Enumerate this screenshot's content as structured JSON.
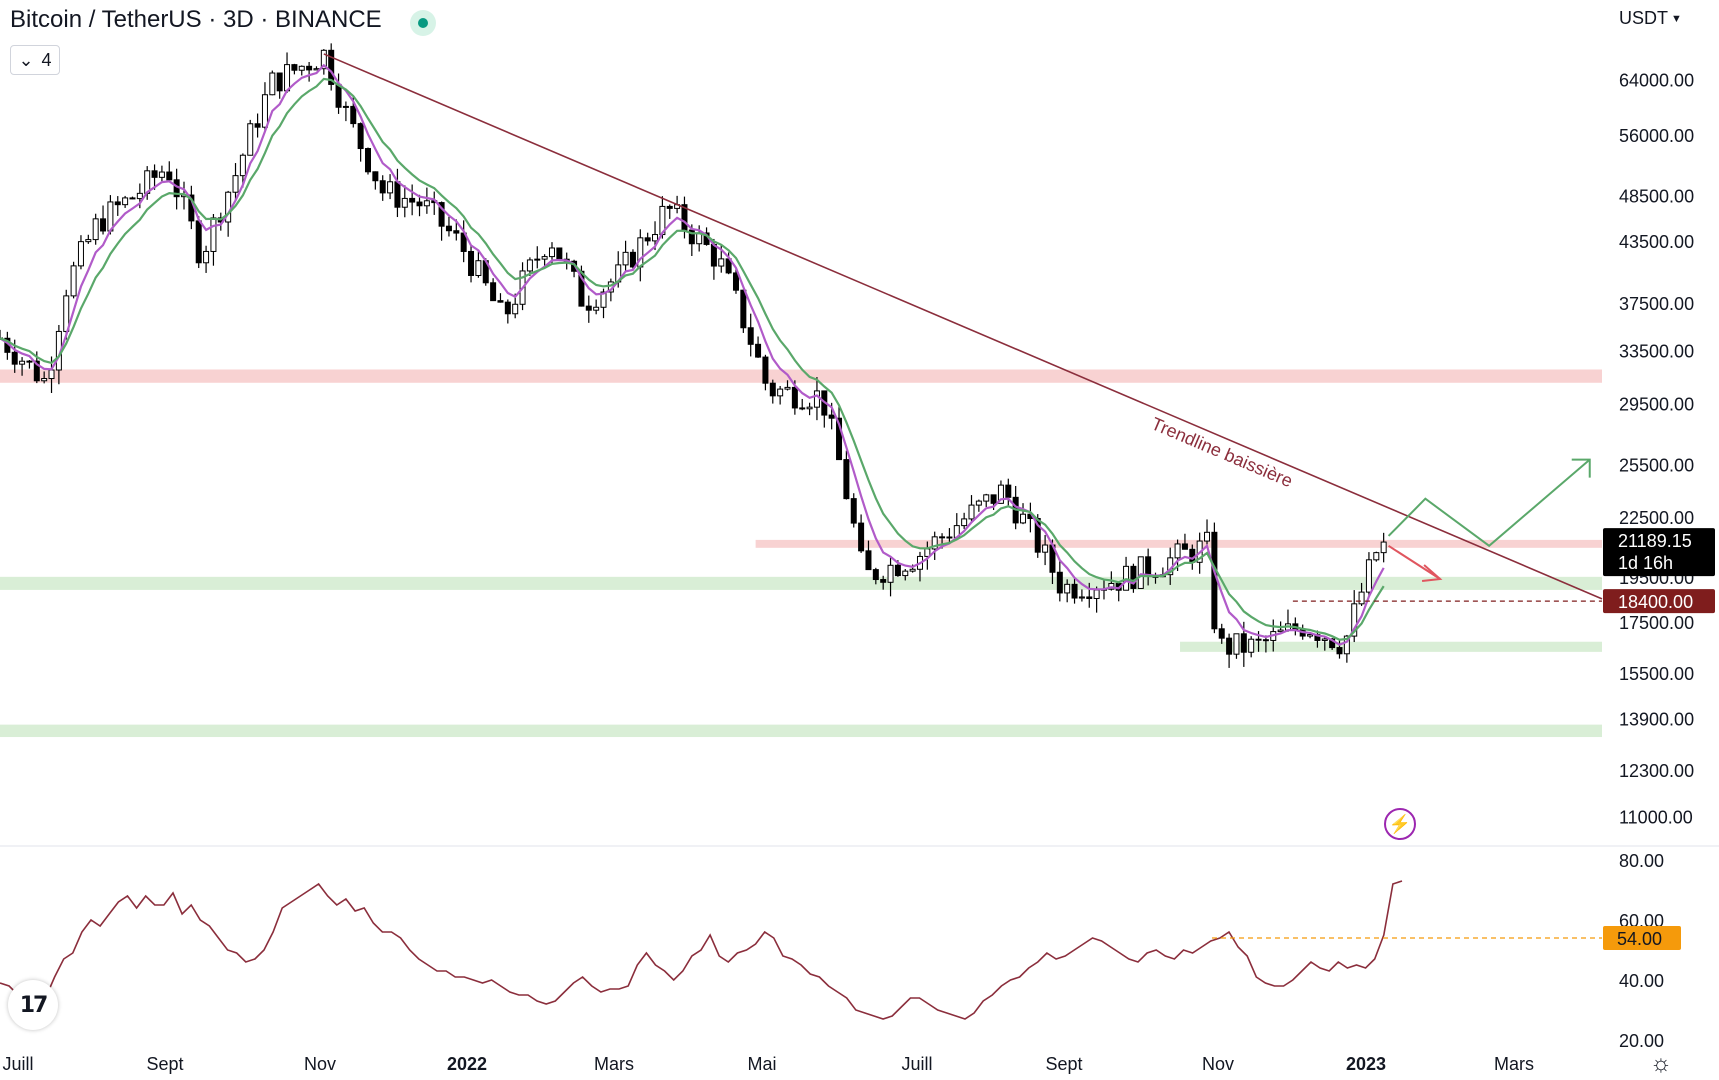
{
  "header": {
    "title": "Bitcoin / TetherUS · 3D · BINANCE",
    "collapse_count": "4",
    "currency": "USDT"
  },
  "icons": {
    "status": "green-dot-icon",
    "collapse": "chevron-down-icon",
    "currency_dropdown": "chevron-down-icon",
    "logo": "tradingview-logo",
    "settings": "gear-icon",
    "alert": "lightning-icon"
  },
  "colors": {
    "up_candle": "#ffffff",
    "down_candle": "#000000",
    "ema_fast": "#b15bc9",
    "ema_slow": "#5aa86a",
    "trendline": "#8b2e3c",
    "resistance_zone": "#f7caca",
    "support_zone": "#d5ecd2",
    "rsi_line": "#8b2e3c",
    "rsi_level": "#f59a0b",
    "current_price_tag": "#000000",
    "level_tag": "#7f1d1d"
  },
  "chart_data": [
    {
      "type": "candlestick",
      "title": "Bitcoin / TetherUS · 3D · BINANCE",
      "y_scale": "log",
      "ylim": [
        10400,
        72000
      ],
      "y_ticks": [
        "64000.00",
        "56000.00",
        "48500.00",
        "43500.00",
        "37500.00",
        "33500.00",
        "29500.00",
        "25500.00",
        "22500.00",
        "19500.00",
        "17500.00",
        "15500.00",
        "13900.00",
        "12300.00",
        "11000.00"
      ],
      "x_ticks": [
        "Juill",
        "Sept",
        "Nov",
        "2022",
        "Mars",
        "Mai",
        "Juill",
        "Sept",
        "Nov",
        "2023",
        "Mars"
      ],
      "x_range": [
        "2021-07-01",
        "2023-04-15"
      ],
      "price_path_approx": [
        [
          "2021-07-01",
          34500
        ],
        [
          "2021-07-20",
          31000
        ],
        [
          "2021-07-28",
          39000
        ],
        [
          "2021-08-10",
          45500
        ],
        [
          "2021-08-25",
          48500
        ],
        [
          "2021-09-07",
          52000
        ],
        [
          "2021-09-21",
          42000
        ],
        [
          "2021-10-05",
          51000
        ],
        [
          "2021-10-20",
          63500
        ],
        [
          "2021-11-10",
          68000
        ],
        [
          "2021-11-20",
          58000
        ],
        [
          "2021-12-04",
          49000
        ],
        [
          "2021-12-20",
          47500
        ],
        [
          "2022-01-05",
          43000
        ],
        [
          "2022-01-22",
          36000
        ],
        [
          "2022-02-10",
          44000
        ],
        [
          "2022-02-24",
          37500
        ],
        [
          "2022-03-10",
          40000
        ],
        [
          "2022-03-30",
          47000
        ],
        [
          "2022-04-20",
          41500
        ],
        [
          "2022-05-10",
          30500
        ],
        [
          "2022-06-01",
          30000
        ],
        [
          "2022-06-18",
          19500
        ],
        [
          "2022-07-10",
          20500
        ],
        [
          "2022-08-14",
          24000
        ],
        [
          "2022-09-07",
          19000
        ],
        [
          "2022-10-01",
          19400
        ],
        [
          "2022-11-05",
          21000
        ],
        [
          "2022-11-09",
          16500
        ],
        [
          "2022-11-25",
          16500
        ],
        [
          "2022-12-15",
          17400
        ],
        [
          "2022-12-31",
          16600
        ],
        [
          "2023-01-14",
          21000
        ],
        [
          "2023-01-17",
          21189.15
        ]
      ],
      "annotations": {
        "trendline_label": "Trendline baissière",
        "current_price": "21189.15",
        "countdown": "1d 16h",
        "level_price": "18400.00",
        "resistance_zones": [
          [
            31000,
            32000
          ],
          [
            20900,
            21300
          ]
        ],
        "support_zones": [
          [
            18900,
            19500
          ],
          [
            16300,
            16700
          ],
          [
            13300,
            13700
          ]
        ],
        "trendline": [
          [
            "2021-11-10",
            68000
          ],
          [
            "2023-04-15",
            18500
          ]
        ],
        "bull_scenario": [
          [
            "2023-01-18",
            21500
          ],
          [
            "2023-02-02",
            23500
          ],
          [
            "2023-02-28",
            21000
          ],
          [
            "2023-04-10",
            25800
          ]
        ],
        "bear_scenario": [
          [
            "2023-01-18",
            21000
          ],
          [
            "2023-02-08",
            19400
          ]
        ]
      },
      "series": [
        {
          "type": "ema",
          "color": "#b15bc9"
        },
        {
          "type": "ema",
          "color": "#5aa86a"
        }
      ]
    },
    {
      "type": "line",
      "ylim": [
        20,
        80
      ],
      "y_ticks": [
        "80.00",
        "60.00",
        "40.00",
        "20.00"
      ],
      "level": "54.00",
      "values": [
        39,
        38,
        35,
        37,
        36,
        34,
        41,
        47,
        49,
        56,
        60,
        58,
        62,
        66,
        68,
        64,
        68,
        65,
        65,
        69,
        62,
        65,
        60,
        58,
        54,
        50,
        49,
        46,
        47,
        50,
        56,
        64,
        66,
        68,
        70,
        72,
        68,
        65,
        67,
        63,
        64,
        59,
        56,
        56,
        54,
        50,
        47,
        45,
        43,
        43,
        41,
        41,
        40,
        39,
        40,
        38,
        36,
        35,
        35,
        33,
        32,
        33,
        36,
        39,
        41,
        38,
        36,
        37,
        37,
        38,
        45,
        49,
        45,
        43,
        40,
        43,
        48,
        50,
        55,
        48,
        46,
        49,
        50,
        52,
        56,
        54,
        48,
        47,
        45,
        42,
        41,
        38,
        36,
        34,
        30,
        29,
        28,
        27,
        28,
        31,
        34,
        34,
        32,
        30,
        29,
        28,
        27,
        29,
        33,
        35,
        38,
        40,
        41,
        44,
        46,
        49,
        47,
        48,
        50,
        52,
        54,
        53,
        51,
        49,
        47,
        46,
        49,
        50,
        48,
        47,
        50,
        49,
        51,
        53,
        54,
        56,
        51,
        48,
        41,
        39,
        38,
        38,
        40,
        43,
        46,
        44,
        43,
        46,
        44,
        45,
        44,
        47,
        55,
        72,
        73
      ]
    }
  ]
}
